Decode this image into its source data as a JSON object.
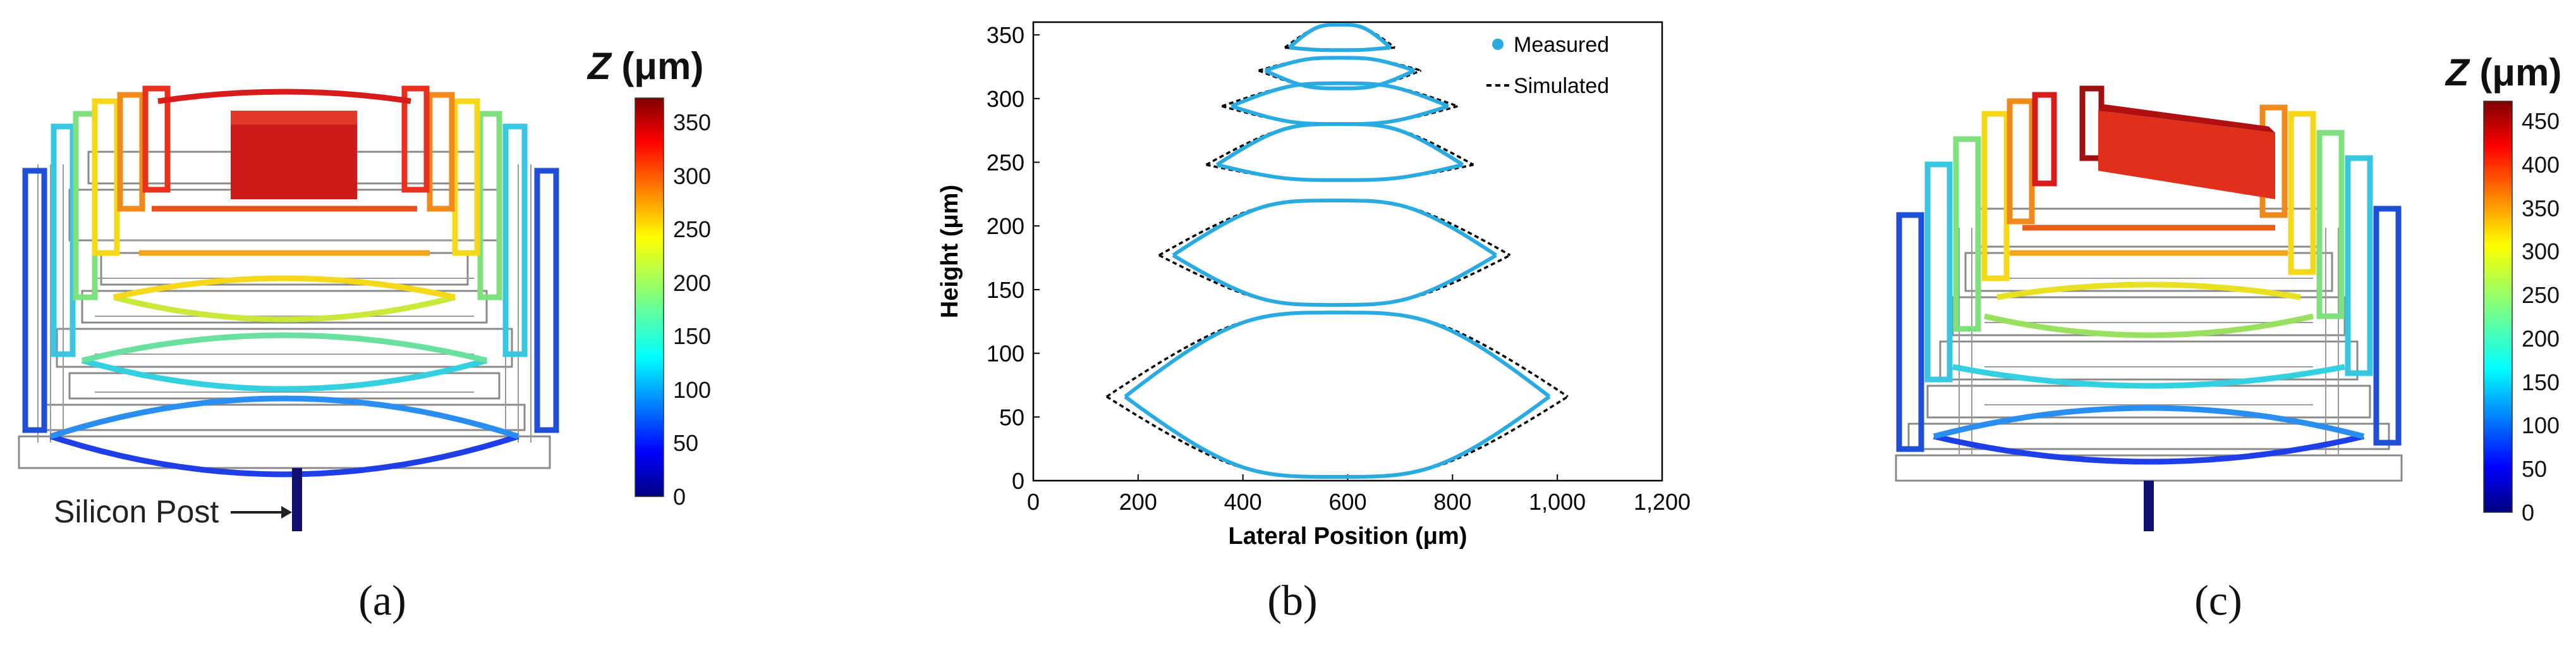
{
  "panel_a": {
    "colorbar_title_var": "Z",
    "colorbar_title_unit": " (μm)",
    "colorbar_ticks": [
      "350",
      "300",
      "250",
      "200",
      "150",
      "100",
      "50",
      "0"
    ],
    "annotation": "Silicon Post",
    "caption": "(a)"
  },
  "panel_b": {
    "caption": "(b)",
    "chart_data": {
      "type": "line",
      "title": "",
      "xlabel": "Lateral Position (μm)",
      "ylabel": "Height (μm)",
      "xlim": [
        0,
        1200
      ],
      "ylim": [
        0,
        360
      ],
      "xticks": [
        "0",
        "200",
        "400",
        "600",
        "800",
        "1,000",
        "1,200"
      ],
      "yticks": [
        "0",
        "50",
        "100",
        "150",
        "200",
        "250",
        "300",
        "350"
      ],
      "legend": {
        "position": "top-right",
        "entries": [
          "Measured",
          "Simulated"
        ]
      },
      "series_colors": {
        "Measured": "#29ABE2",
        "Simulated": "#000000"
      },
      "lens_pairs": [
        {
          "x0": 140,
          "x1": 1020,
          "y_end": 66,
          "y_low": 3,
          "y_high": 132
        },
        {
          "x0": 240,
          "x1": 910,
          "y_end": 177,
          "y_low": 138,
          "y_high": 220
        },
        {
          "x0": 330,
          "x1": 840,
          "y_end": 248,
          "y_low": 236,
          "y_high": 280
        },
        {
          "x0": 360,
          "x1": 810,
          "y_end": 294,
          "y_low": 280,
          "y_high": 312
        },
        {
          "x0": 430,
          "x1": 740,
          "y_end": 322,
          "y_low": 308,
          "y_high": 332
        },
        {
          "x0": 480,
          "x1": 690,
          "y_end": 340,
          "y_low": 338,
          "y_high": 358
        }
      ]
    }
  },
  "panel_c": {
    "colorbar_title_var": "Z",
    "colorbar_title_unit": " (μm)",
    "colorbar_ticks": [
      "450",
      "400",
      "350",
      "300",
      "250",
      "200",
      "150",
      "100",
      "50",
      "0"
    ],
    "caption": "(c)"
  },
  "colors": {
    "jet_top": "#7f0000",
    "jet_bottom": "#00007f",
    "structure_gray": "#9a9a9a"
  }
}
